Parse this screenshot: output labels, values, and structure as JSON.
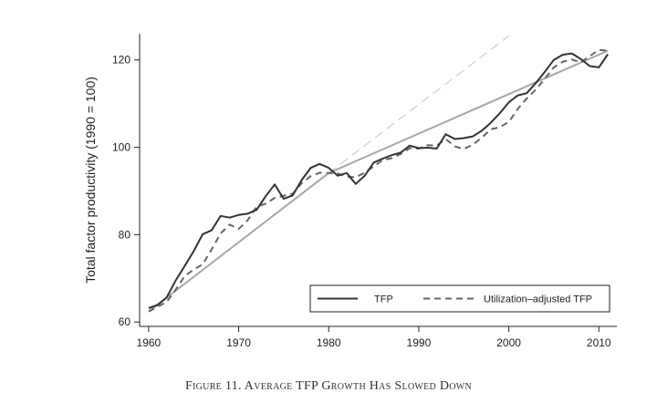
{
  "caption": "Figure 11. Average TFP Growth Has Slowed Down",
  "chart_data": {
    "type": "line",
    "ylabel": "Total factor productivity (1990 = 100)",
    "xlabel": "",
    "xlim": [
      1959,
      2012
    ],
    "ylim": [
      59,
      126
    ],
    "xticks": [
      1960,
      1970,
      1980,
      1990,
      2000,
      2010
    ],
    "yticks": [
      60,
      80,
      100,
      120
    ],
    "grid": false,
    "legend": {
      "placement": "bottom-right"
    },
    "series": [
      {
        "name": "TFP",
        "style": "solid",
        "color": "#333333",
        "x": [
          1960,
          1961,
          1962,
          1963,
          1964,
          1965,
          1966,
          1967,
          1968,
          1969,
          1970,
          1971,
          1972,
          1973,
          1974,
          1975,
          1976,
          1977,
          1978,
          1979,
          1980,
          1981,
          1982,
          1983,
          1984,
          1985,
          1986,
          1987,
          1988,
          1989,
          1990,
          1991,
          1992,
          1993,
          1994,
          1995,
          1996,
          1997,
          1998,
          1999,
          2000,
          2001,
          2002,
          2003,
          2004,
          2005,
          2006,
          2007,
          2008,
          2009,
          2010,
          2011
        ],
        "y": [
          63.2,
          63.9,
          65.6,
          69.5,
          72.8,
          76.2,
          80.1,
          81.0,
          84.3,
          83.9,
          84.5,
          84.8,
          85.7,
          88.8,
          91.5,
          88.2,
          89.0,
          92.5,
          95.3,
          96.2,
          95.3,
          93.5,
          94.1,
          91.6,
          93.5,
          96.5,
          97.4,
          98.2,
          98.8,
          100.4,
          99.8,
          99.9,
          99.7,
          103.0,
          101.9,
          102.1,
          102.5,
          103.8,
          105.6,
          107.8,
          110.3,
          111.9,
          112.4,
          114.7,
          117.3,
          120.0,
          121.2,
          121.5,
          120.2,
          118.6,
          118.3,
          121.3
        ]
      },
      {
        "name": "Utilization–adjusted TFP",
        "style": "dashed",
        "color": "#666666",
        "x": [
          1960,
          1961,
          1962,
          1963,
          1964,
          1965,
          1966,
          1967,
          1968,
          1969,
          1970,
          1971,
          1972,
          1973,
          1974,
          1975,
          1976,
          1977,
          1978,
          1979,
          1980,
          1981,
          1982,
          1983,
          1984,
          1985,
          1986,
          1987,
          1988,
          1989,
          1990,
          1991,
          1992,
          1993,
          1994,
          1995,
          1996,
          1997,
          1998,
          1999,
          2000,
          2001,
          2002,
          2003,
          2004,
          2005,
          2006,
          2007,
          2008,
          2009,
          2010,
          2011
        ],
        "y": [
          62.4,
          63.5,
          64.6,
          67.4,
          70.5,
          72.0,
          73.2,
          76.6,
          80.3,
          82.3,
          81.3,
          83.3,
          86.4,
          87.1,
          88.4,
          88.9,
          89.4,
          91.8,
          93.4,
          94.2,
          94.1,
          94.0,
          93.3,
          93.1,
          94.2,
          95.6,
          97.1,
          97.5,
          98.5,
          99.8,
          99.7,
          100.5,
          100.4,
          101.9,
          100.2,
          99.6,
          100.6,
          102.2,
          104.1,
          104.6,
          105.8,
          108.8,
          111.2,
          113.2,
          115.7,
          118.3,
          119.6,
          120.1,
          119.4,
          120.9,
          122.3,
          122.1
        ]
      },
      {
        "name": "",
        "style": "trend",
        "color": "#a8a8a8",
        "x": [
          1960,
          1980
        ],
        "y": [
          62.4,
          94.1
        ]
      },
      {
        "name": "",
        "style": "trend",
        "color": "#a8a8a8",
        "x": [
          1980,
          2011
        ],
        "y": [
          94.1,
          122.1
        ]
      },
      {
        "name": "",
        "style": "trend-extrapolated",
        "color": "#cfcfcf",
        "x": [
          1980,
          2000
        ],
        "y": [
          94.1,
          125.5
        ]
      }
    ]
  }
}
